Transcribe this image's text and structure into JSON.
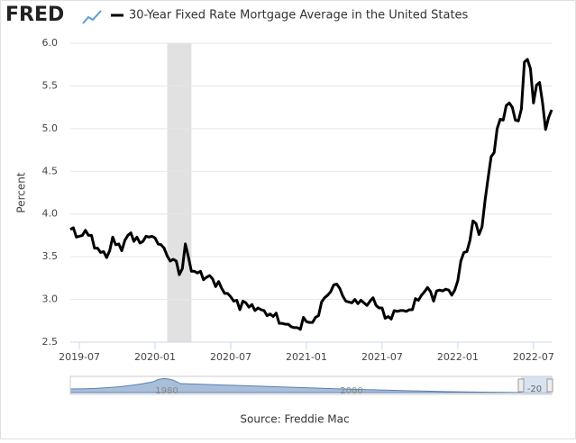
{
  "chart_data": {
    "type": "line",
    "logo": "FRED",
    "y_label": "Percent",
    "source": "Source: Freddie Mac",
    "navigator_labels": [
      "1980",
      "2000",
      "-20"
    ],
    "xlim": [
      2019.44,
      2022.62
    ],
    "xticks": [
      {
        "value": 2019.5,
        "label": "2019-07"
      },
      {
        "value": 2020.0,
        "label": "2020-01"
      },
      {
        "value": 2020.5,
        "label": "2020-07"
      },
      {
        "value": 2021.0,
        "label": "2021-01"
      },
      {
        "value": 2021.5,
        "label": "2021-07"
      },
      {
        "value": 2022.0,
        "label": "2022-01"
      },
      {
        "value": 2022.5,
        "label": "2022-07"
      }
    ],
    "ylim": [
      2.5,
      6.0
    ],
    "yticks": [
      2.5,
      {
        "value": 3.0,
        "label": "3.0"
      },
      3.5,
      {
        "value": 4.0,
        "label": "4.0"
      },
      4.5,
      {
        "value": 5.0,
        "label": "5.0"
      },
      5.5,
      {
        "value": 6.0,
        "label": "6.0"
      }
    ],
    "grid": true,
    "recession": [
      2020.08,
      2020.24
    ],
    "recession_color": "#e1e1e1",
    "x": [
      2019.44,
      2019.46,
      2019.48,
      2019.52,
      2019.54,
      2019.56,
      2019.58,
      2019.6,
      2019.62,
      2019.64,
      2019.66,
      2019.68,
      2019.7,
      2019.72,
      2019.74,
      2019.76,
      2019.78,
      2019.8,
      2019.82,
      2019.84,
      2019.86,
      2019.88,
      2019.9,
      2019.92,
      2019.94,
      2019.96,
      2019.98,
      2020.0,
      2020.02,
      2020.04,
      2020.06,
      2020.08,
      2020.1,
      2020.12,
      2020.14,
      2020.16,
      2020.18,
      2020.2,
      2020.22,
      2020.24,
      2020.26,
      2020.28,
      2020.3,
      2020.32,
      2020.34,
      2020.36,
      2020.38,
      2020.4,
      2020.42,
      2020.44,
      2020.46,
      2020.48,
      2020.5,
      2020.52,
      2020.54,
      2020.56,
      2020.58,
      2020.6,
      2020.62,
      2020.64,
      2020.66,
      2020.68,
      2020.7,
      2020.72,
      2020.74,
      2020.76,
      2020.78,
      2020.8,
      2020.82,
      2020.84,
      2020.86,
      2020.88,
      2020.9,
      2020.92,
      2020.94,
      2020.96,
      2020.98,
      2021.0,
      2021.02,
      2021.04,
      2021.06,
      2021.08,
      2021.1,
      2021.12,
      2021.14,
      2021.16,
      2021.18,
      2021.2,
      2021.22,
      2021.24,
      2021.26,
      2021.28,
      2021.3,
      2021.32,
      2021.34,
      2021.36,
      2021.38,
      2021.4,
      2021.42,
      2021.44,
      2021.46,
      2021.48,
      2021.5,
      2021.52,
      2021.54,
      2021.56,
      2021.58,
      2021.6,
      2021.62,
      2021.64,
      2021.66,
      2021.68,
      2021.7,
      2021.72,
      2021.74,
      2021.76,
      2021.78,
      2021.8,
      2021.82,
      2021.84,
      2021.86,
      2021.88,
      2021.9,
      2021.92,
      2021.94,
      2021.96,
      2021.98,
      2022.0,
      2022.02,
      2022.04,
      2022.06,
      2022.08,
      2022.1,
      2022.12,
      2022.14,
      2022.16,
      2022.18,
      2022.2,
      2022.22,
      2022.24,
      2022.26,
      2022.28,
      2022.3,
      2022.32,
      2022.34,
      2022.36,
      2022.38,
      2022.4,
      2022.42,
      2022.44,
      2022.46,
      2022.48,
      2022.5,
      2022.52,
      2022.54,
      2022.56,
      2022.58,
      2022.6,
      2022.62
    ],
    "series": [
      {
        "name": "30-Year Fixed Rate Mortgage Average in the United States",
        "color": "#000000",
        "values": [
          3.82,
          3.84,
          3.73,
          3.75,
          3.81,
          3.75,
          3.75,
          3.6,
          3.6,
          3.55,
          3.56,
          3.49,
          3.57,
          3.73,
          3.64,
          3.65,
          3.57,
          3.69,
          3.75,
          3.78,
          3.68,
          3.73,
          3.66,
          3.68,
          3.74,
          3.73,
          3.74,
          3.72,
          3.65,
          3.64,
          3.6,
          3.51,
          3.45,
          3.47,
          3.45,
          3.29,
          3.36,
          3.65,
          3.5,
          3.33,
          3.33,
          3.31,
          3.33,
          3.23,
          3.26,
          3.28,
          3.24,
          3.15,
          3.21,
          3.13,
          3.07,
          3.07,
          3.03,
          2.98,
          2.99,
          2.88,
          2.98,
          2.96,
          2.91,
          2.94,
          2.87,
          2.9,
          2.88,
          2.87,
          2.81,
          2.83,
          2.8,
          2.84,
          2.72,
          2.72,
          2.71,
          2.71,
          2.68,
          2.67,
          2.67,
          2.65,
          2.79,
          2.74,
          2.73,
          2.73,
          2.79,
          2.81,
          2.97,
          3.02,
          3.05,
          3.09,
          3.17,
          3.18,
          3.13,
          3.04,
          2.98,
          2.97,
          2.96,
          3.0,
          2.95,
          2.99,
          2.96,
          2.93,
          2.98,
          3.02,
          2.93,
          2.9,
          2.9,
          2.78,
          2.8,
          2.77,
          2.87,
          2.86,
          2.87,
          2.87,
          2.86,
          2.88,
          2.88,
          3.01,
          2.99,
          3.05,
          3.09,
          3.14,
          3.09,
          2.98,
          3.1,
          3.11,
          3.1,
          3.12,
          3.11,
          3.05,
          3.11,
          3.22,
          3.45,
          3.55,
          3.56,
          3.69,
          3.92,
          3.89,
          3.76,
          3.85,
          4.16,
          4.42,
          4.67,
          4.72,
          5.0,
          5.11,
          5.1,
          5.27,
          5.3,
          5.25,
          5.1,
          5.09,
          5.23,
          5.78,
          5.81,
          5.7,
          5.3,
          5.51,
          5.54,
          5.3,
          4.99,
          5.13,
          5.22
        ]
      }
    ]
  }
}
